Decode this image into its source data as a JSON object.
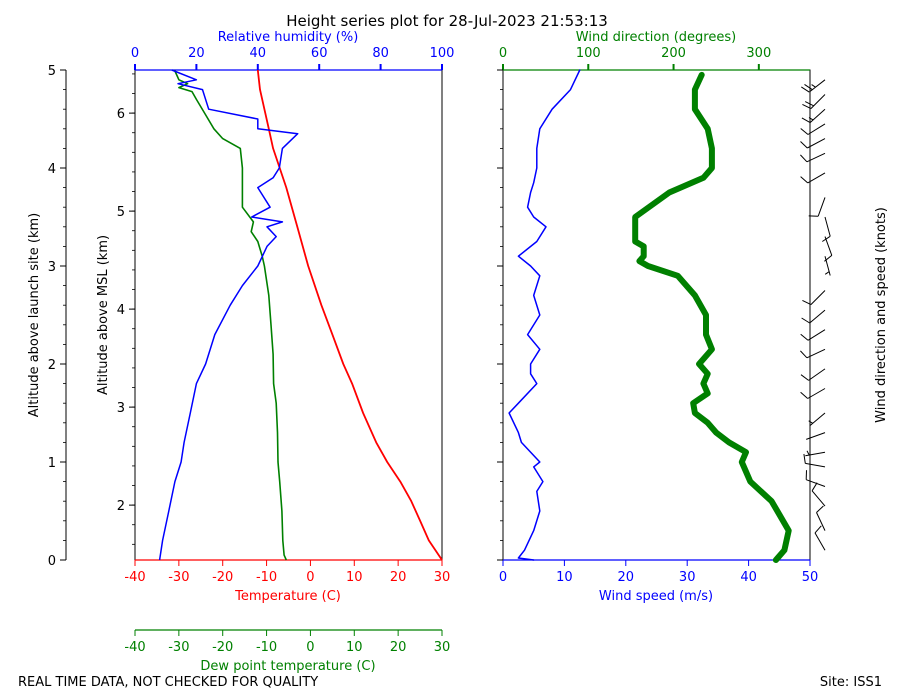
{
  "title": "Height series plot for 28-Jul-2023 21:53:13",
  "footer_left": "REAL TIME DATA, NOT CHECKED FOR QUALITY",
  "footer_right": "Site: ISS1",
  "colors": {
    "temperature": "#ff0000",
    "dewpoint": "#008000",
    "rh": "#0000ff",
    "speed": "#0000ff",
    "direction": "#008000",
    "barbs": "#000000"
  },
  "chart_data": [
    {
      "type": "line",
      "name": "thermodynamic-profile",
      "axes": {
        "launch_alt": {
          "label": "Altitude above launch site (km)",
          "lim": [
            0,
            5
          ],
          "ticks": [
            0,
            1,
            2,
            3,
            4,
            5
          ]
        },
        "msl_alt": {
          "label": "Altitude above MSL (km)",
          "lim": [
            1.44,
            6.44
          ],
          "ticks": [
            2,
            3,
            4,
            5,
            6
          ]
        },
        "temperature": {
          "label": "Temperature (C)",
          "lim": [
            -40,
            30
          ],
          "ticks": [
            -40,
            -30,
            -20,
            -10,
            0,
            10,
            20,
            30
          ]
        },
        "dewpoint": {
          "label": "Dew point temperature (C)",
          "lim": [
            -40,
            30
          ],
          "ticks": [
            -40,
            -30,
            -20,
            -10,
            0,
            10,
            20,
            30
          ]
        },
        "rh": {
          "label": "Relative humidity (%)",
          "lim": [
            0,
            100
          ],
          "ticks": [
            0,
            20,
            40,
            60,
            80,
            100
          ]
        }
      },
      "series": [
        {
          "name": "Temperature",
          "x_axis": "temperature",
          "alt": [
            0,
            0.2,
            0.4,
            0.6,
            0.8,
            1.0,
            1.2,
            1.5,
            1.8,
            2.0,
            2.3,
            2.6,
            3.0,
            3.4,
            3.8,
            4.0,
            4.2,
            4.4,
            4.6,
            4.8,
            5.0
          ],
          "values": [
            30,
            27,
            25,
            23,
            20.5,
            17.5,
            15,
            12,
            9.5,
            7.5,
            5,
            2.5,
            -0.5,
            -3,
            -5.5,
            -7,
            -8.5,
            -9.5,
            -10.5,
            -11.5,
            -12
          ]
        },
        {
          "name": "Dew point",
          "x_axis": "dewpoint",
          "alt": [
            0,
            0.05,
            0.2,
            0.5,
            0.8,
            1.0,
            1.3,
            1.6,
            1.8,
            2.1,
            2.4,
            2.7,
            3.0,
            3.1,
            3.25,
            3.35,
            3.45,
            3.6,
            3.8,
            4.0,
            4.2,
            4.3,
            4.4,
            4.55,
            4.7,
            4.78,
            4.82,
            4.86,
            4.9,
            5.0
          ],
          "values": [
            -5.5,
            -6,
            -6.3,
            -6.5,
            -7,
            -7.4,
            -7.5,
            -7.8,
            -8.4,
            -8.5,
            -9,
            -9.5,
            -10.5,
            -11,
            -12,
            -13.5,
            -13,
            -15.5,
            -15.5,
            -15.5,
            -16,
            -20,
            -22,
            -24,
            -26,
            -27,
            -30,
            -28,
            -30,
            -31
          ]
        },
        {
          "name": "Relative humidity",
          "x_axis": "rh",
          "alt": [
            0,
            0.2,
            0.5,
            0.8,
            1.0,
            1.2,
            1.5,
            1.8,
            2.0,
            2.3,
            2.6,
            2.8,
            3.0,
            3.2,
            3.3,
            3.4,
            3.45,
            3.5,
            3.6,
            3.8,
            3.9,
            4.0,
            4.2,
            4.35,
            4.4,
            4.5,
            4.6,
            4.8,
            4.86,
            4.9,
            5.0
          ],
          "values": [
            8,
            9,
            11,
            13,
            15,
            16,
            18,
            20,
            23,
            26,
            31,
            35,
            40,
            43,
            46,
            43,
            48,
            38,
            44,
            40,
            45,
            47,
            48,
            53,
            40,
            40,
            24,
            22,
            14,
            20,
            12
          ]
        }
      ]
    },
    {
      "type": "line",
      "name": "wind-profile",
      "axes": {
        "speed": {
          "label": "Wind speed (m/s)",
          "lim": [
            0,
            50
          ],
          "ticks": [
            0,
            10,
            20,
            30,
            40,
            50
          ]
        },
        "direction": {
          "label": "Wind direction (degrees)",
          "lim": [
            0,
            360
          ],
          "ticks": [
            0,
            100,
            200,
            300
          ]
        },
        "barbs_label": "Wind direction and speed (knots)"
      },
      "series": [
        {
          "name": "Wind speed",
          "x_axis": "speed",
          "alt": [
            0,
            0.02,
            0.1,
            0.3,
            0.5,
            0.7,
            0.8,
            0.95,
            1.0,
            1.2,
            1.3,
            1.5,
            1.6,
            1.8,
            1.9,
            2.0,
            2.15,
            2.3,
            2.5,
            2.7,
            2.9,
            3.0,
            3.1,
            3.25,
            3.4,
            3.5,
            3.6,
            3.75,
            3.85,
            4.0,
            4.2,
            4.4,
            4.6,
            4.8,
            5.0
          ],
          "values": [
            5,
            2.5,
            3.5,
            5,
            6,
            5.5,
            6.5,
            5,
            6,
            3,
            2.5,
            1,
            2.5,
            5.5,
            4.5,
            4.5,
            6,
            4,
            6,
            5,
            6,
            4.5,
            2.5,
            5.5,
            7,
            5,
            4,
            4.5,
            5,
            5.5,
            5.5,
            6,
            8,
            11,
            12.5
          ]
        },
        {
          "name": "Wind direction",
          "x_axis": "direction",
          "alt": [
            0,
            0.1,
            0.3,
            0.6,
            0.8,
            1.0,
            1.1,
            1.2,
            1.3,
            1.4,
            1.5,
            1.6,
            1.7,
            1.8,
            1.9,
            2.0,
            2.15,
            2.3,
            2.5,
            2.7,
            2.9,
            3.0,
            3.05,
            3.1,
            3.2,
            3.25,
            3.5,
            3.75,
            3.9,
            4.0,
            4.2,
            4.4,
            4.6,
            4.8,
            4.95
          ],
          "values": [
            320,
            330,
            335,
            315,
            290,
            280,
            285,
            265,
            250,
            240,
            225,
            223,
            240,
            235,
            240,
            230,
            245,
            238,
            238,
            225,
            205,
            170,
            160,
            165,
            165,
            155,
            155,
            195,
            235,
            245,
            245,
            240,
            225,
            225,
            233
          ]
        }
      ],
      "barbs_knots": [
        {
          "alt": 0.1,
          "dir": 330,
          "speed": 10
        },
        {
          "alt": 0.3,
          "dir": 335,
          "speed": 12
        },
        {
          "alt": 0.55,
          "dir": 320,
          "speed": 10
        },
        {
          "alt": 0.75,
          "dir": 290,
          "speed": 12
        },
        {
          "alt": 0.95,
          "dir": 280,
          "speed": 10
        },
        {
          "alt": 1.1,
          "dir": 260,
          "speed": 6
        },
        {
          "alt": 1.3,
          "dir": 250,
          "speed": 2
        },
        {
          "alt": 1.5,
          "dir": 230,
          "speed": 4
        },
        {
          "alt": 1.75,
          "dir": 240,
          "speed": 10
        },
        {
          "alt": 1.95,
          "dir": 235,
          "speed": 10
        },
        {
          "alt": 2.15,
          "dir": 245,
          "speed": 10
        },
        {
          "alt": 2.35,
          "dir": 238,
          "speed": 10
        },
        {
          "alt": 2.55,
          "dir": 230,
          "speed": 12
        },
        {
          "alt": 2.75,
          "dir": 225,
          "speed": 10
        },
        {
          "alt": 3.1,
          "dir": 165,
          "speed": 6
        },
        {
          "alt": 3.3,
          "dir": 160,
          "speed": 8
        },
        {
          "alt": 3.5,
          "dir": 165,
          "speed": 8
        },
        {
          "alt": 3.7,
          "dir": 200,
          "speed": 10
        },
        {
          "alt": 3.95,
          "dir": 240,
          "speed": 10
        },
        {
          "alt": 4.15,
          "dir": 245,
          "speed": 10
        },
        {
          "alt": 4.3,
          "dir": 242,
          "speed": 12
        },
        {
          "alt": 4.45,
          "dir": 238,
          "speed": 12
        },
        {
          "alt": 4.6,
          "dir": 228,
          "speed": 16
        },
        {
          "alt": 4.75,
          "dir": 225,
          "speed": 20
        },
        {
          "alt": 4.9,
          "dir": 232,
          "speed": 24
        }
      ]
    }
  ]
}
